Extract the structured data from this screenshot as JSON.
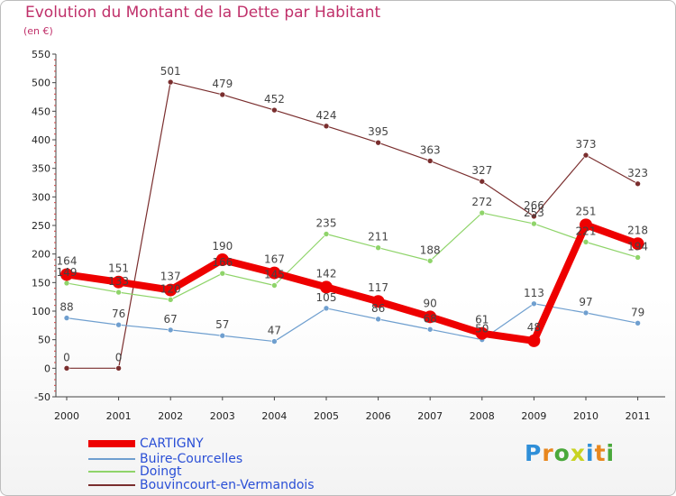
{
  "title": "Evolution du Montant de la Dette par Habitant",
  "subtitle": "(en €)",
  "logo": {
    "text": "Proxiti",
    "letter_colors": [
      "#2f8fd8",
      "#e8871e",
      "#4aa83b",
      "#c8d322",
      "#2f8fd8",
      "#e8871e",
      "#4aa83b"
    ]
  },
  "chart_data": {
    "type": "line",
    "title": "Evolution du Montant de la Dette par Habitant",
    "subtitle": "(en €)",
    "xlabel": "",
    "ylabel": "",
    "categories": [
      "2000",
      "2001",
      "2002",
      "2003",
      "2004",
      "2005",
      "2006",
      "2007",
      "2008",
      "2009",
      "2010",
      "2011"
    ],
    "ylim": [
      -50,
      550
    ],
    "yticks": [
      "-50",
      "0",
      "50",
      "100",
      "150",
      "200",
      "250",
      "300",
      "350",
      "400",
      "450",
      "500",
      "550"
    ],
    "grid": false,
    "legend_position": "bottom-left",
    "series": [
      {
        "name": "Bouvincourt-en-Vermandois",
        "color": "#7a2e2e",
        "values": [
          0,
          0,
          501,
          479,
          452,
          424,
          395,
          363,
          327,
          266,
          373,
          323
        ],
        "labels": [
          "0",
          "0",
          "501",
          "479",
          "452",
          "424",
          "395",
          "363",
          "327",
          "266",
          "373",
          "323"
        ]
      },
      {
        "name": "Doingt",
        "color": "#8fd46a",
        "values": [
          149,
          133,
          120,
          166,
          145,
          235,
          211,
          188,
          272,
          253,
          221,
          194
        ],
        "labels": [
          "149",
          "133",
          "120",
          "166",
          "145",
          "235",
          "211",
          "188",
          "272",
          "253",
          "221",
          "194"
        ]
      },
      {
        "name": "Buire-Courcelles",
        "color": "#6f9fcf",
        "values": [
          88,
          76,
          67,
          57,
          47,
          105,
          86,
          68,
          50,
          113,
          97,
          79
        ],
        "labels": [
          "88",
          "76",
          "67",
          "57",
          "47",
          "105",
          "86",
          "68",
          "50",
          "113",
          "97",
          "79"
        ]
      },
      {
        "name": "CARTIGNY",
        "color": "#ee0000",
        "values": [
          164,
          151,
          137,
          190,
          167,
          142,
          117,
          90,
          61,
          48,
          251,
          218
        ],
        "labels": [
          "164",
          "151",
          "137",
          "190",
          "167",
          "142",
          "117",
          "90",
          "61",
          "48",
          "251",
          "218"
        ]
      }
    ],
    "legend": [
      "CARTIGNY",
      "Buire-Courcelles",
      "Doingt",
      "Bouvincourt-en-Vermandois"
    ]
  }
}
